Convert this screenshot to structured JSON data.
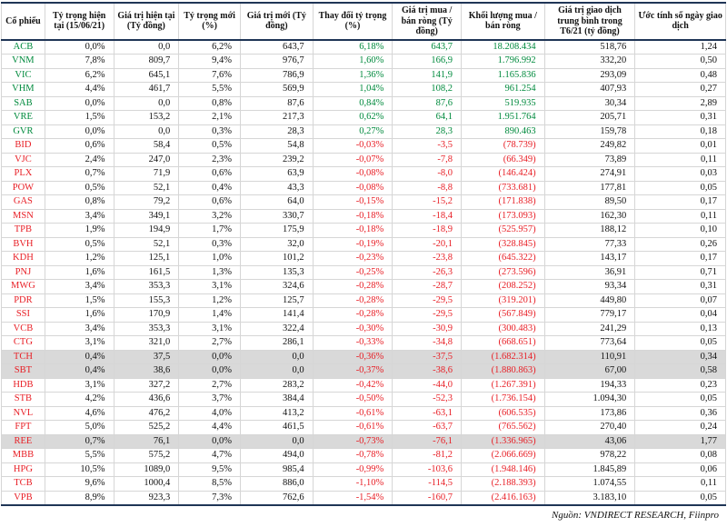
{
  "colors": {
    "positive_green": "#008a3d",
    "negative_red": "#e81e25",
    "highlight_gray": "#d9d9d9",
    "rule_dark": "#1f3556",
    "grid_line": "#d6d6d6"
  },
  "table": {
    "columns": [
      "Cổ phiếu",
      "Tỷ trọng hiện tại (15/06/21)",
      "Giá trị hiện tại (Tỷ đồng)",
      "Tỷ trọng mới (%)",
      "Giá trị mới (Tỷ đồng)",
      "Thay đổi tỷ trọng (%)",
      "Giá trị mua / bán ròng (Tỷ đồng)",
      "Khối lượng mua / bán ròng",
      "Giá trị giao dịch trung bình trong T6/21 (tỷ đồng)",
      "Ước tính số ngày giao dịch"
    ],
    "rows": [
      {
        "ticker": "ACB",
        "trend": "up",
        "highlight": false,
        "cells": [
          "0,0%",
          "0,0",
          "6,2%",
          "643,7",
          "6,18%",
          "643,7",
          "18.208.434",
          "518,76",
          "1,24"
        ]
      },
      {
        "ticker": "VNM",
        "trend": "up",
        "highlight": false,
        "cells": [
          "7,8%",
          "809,7",
          "9,4%",
          "976,7",
          "1,60%",
          "166,9",
          "1.796.992",
          "332,20",
          "0,50"
        ]
      },
      {
        "ticker": "VIC",
        "trend": "up",
        "highlight": false,
        "cells": [
          "6,2%",
          "645,1",
          "7,6%",
          "786,9",
          "1,36%",
          "141,9",
          "1.165.836",
          "293,09",
          "0,48"
        ]
      },
      {
        "ticker": "VHM",
        "trend": "up",
        "highlight": false,
        "cells": [
          "4,4%",
          "461,7",
          "5,5%",
          "569,9",
          "1,04%",
          "108,2",
          "961.254",
          "407,93",
          "0,27"
        ]
      },
      {
        "ticker": "SAB",
        "trend": "up",
        "highlight": false,
        "cells": [
          "0,0%",
          "0,0",
          "0,8%",
          "87,6",
          "0,84%",
          "87,6",
          "519.935",
          "30,34",
          "2,89"
        ]
      },
      {
        "ticker": "VRE",
        "trend": "up",
        "highlight": false,
        "cells": [
          "1,5%",
          "153,2",
          "2,1%",
          "217,3",
          "0,62%",
          "64,1",
          "1.951.764",
          "205,71",
          "0,31"
        ]
      },
      {
        "ticker": "GVR",
        "trend": "up",
        "highlight": false,
        "cells": [
          "0,0%",
          "0,0",
          "0,3%",
          "28,3",
          "0,27%",
          "28,3",
          "890.463",
          "159,78",
          "0,18"
        ]
      },
      {
        "ticker": "BID",
        "trend": "down",
        "highlight": false,
        "cells": [
          "0,6%",
          "58,4",
          "0,5%",
          "54,8",
          "-0,03%",
          "-3,5",
          "(78.739)",
          "249,82",
          "0,01"
        ]
      },
      {
        "ticker": "VJC",
        "trend": "down",
        "highlight": false,
        "cells": [
          "2,4%",
          "247,0",
          "2,3%",
          "239,2",
          "-0,07%",
          "-7,8",
          "(66.349)",
          "73,89",
          "0,11"
        ]
      },
      {
        "ticker": "PLX",
        "trend": "down",
        "highlight": false,
        "cells": [
          "0,7%",
          "71,9",
          "0,6%",
          "63,9",
          "-0,08%",
          "-8,0",
          "(146.424)",
          "274,91",
          "0,03"
        ]
      },
      {
        "ticker": "POW",
        "trend": "down",
        "highlight": false,
        "cells": [
          "0,5%",
          "52,1",
          "0,4%",
          "43,3",
          "-0,08%",
          "-8,8",
          "(733.681)",
          "177,81",
          "0,05"
        ]
      },
      {
        "ticker": "GAS",
        "trend": "down",
        "highlight": false,
        "cells": [
          "0,8%",
          "79,2",
          "0,6%",
          "64,0",
          "-0,15%",
          "-15,2",
          "(171.838)",
          "89,50",
          "0,17"
        ]
      },
      {
        "ticker": "MSN",
        "trend": "down",
        "highlight": false,
        "cells": [
          "3,4%",
          "349,1",
          "3,2%",
          "330,7",
          "-0,18%",
          "-18,4",
          "(173.093)",
          "162,30",
          "0,11"
        ]
      },
      {
        "ticker": "TPB",
        "trend": "down",
        "highlight": false,
        "cells": [
          "1,9%",
          "194,9",
          "1,7%",
          "175,9",
          "-0,18%",
          "-18,9",
          "(525.957)",
          "188,12",
          "0,10"
        ]
      },
      {
        "ticker": "BVH",
        "trend": "down",
        "highlight": false,
        "cells": [
          "0,5%",
          "52,1",
          "0,3%",
          "32,0",
          "-0,19%",
          "-20,1",
          "(328.845)",
          "77,33",
          "0,26"
        ]
      },
      {
        "ticker": "KDH",
        "trend": "down",
        "highlight": false,
        "cells": [
          "1,2%",
          "125,1",
          "1,0%",
          "101,2",
          "-0,23%",
          "-23,8",
          "(645.322)",
          "143,17",
          "0,17"
        ]
      },
      {
        "ticker": "PNJ",
        "trend": "down",
        "highlight": false,
        "cells": [
          "1,6%",
          "161,5",
          "1,3%",
          "135,3",
          "-0,25%",
          "-26,3",
          "(273.596)",
          "36,91",
          "0,71"
        ]
      },
      {
        "ticker": "MWG",
        "trend": "down",
        "highlight": false,
        "cells": [
          "3,4%",
          "353,3",
          "3,1%",
          "324,6",
          "-0,28%",
          "-28,7",
          "(208.252)",
          "93,34",
          "0,31"
        ]
      },
      {
        "ticker": "PDR",
        "trend": "down",
        "highlight": false,
        "cells": [
          "1,5%",
          "155,3",
          "1,2%",
          "125,7",
          "-0,28%",
          "-29,5",
          "(319.201)",
          "449,80",
          "0,07"
        ]
      },
      {
        "ticker": "SSI",
        "trend": "down",
        "highlight": false,
        "cells": [
          "1,6%",
          "170,9",
          "1,4%",
          "141,4",
          "-0,28%",
          "-29,5",
          "(567.849)",
          "779,17",
          "0,04"
        ]
      },
      {
        "ticker": "VCB",
        "trend": "down",
        "highlight": false,
        "cells": [
          "3,4%",
          "353,3",
          "3,1%",
          "322,4",
          "-0,30%",
          "-30,9",
          "(300.483)",
          "241,29",
          "0,13"
        ]
      },
      {
        "ticker": "CTG",
        "trend": "down",
        "highlight": false,
        "cells": [
          "3,1%",
          "321,0",
          "2,7%",
          "286,1",
          "-0,33%",
          "-34,8",
          "(668.651)",
          "773,64",
          "0,05"
        ]
      },
      {
        "ticker": "TCH",
        "trend": "down",
        "highlight": true,
        "cells": [
          "0,4%",
          "37,5",
          "0,0%",
          "0,0",
          "-0,36%",
          "-37,5",
          "(1.682.314)",
          "110,91",
          "0,34"
        ]
      },
      {
        "ticker": "SBT",
        "trend": "down",
        "highlight": true,
        "cells": [
          "0,4%",
          "38,6",
          "0,0%",
          "0,0",
          "-0,37%",
          "-38,6",
          "(1.880.863)",
          "67,00",
          "0,58"
        ]
      },
      {
        "ticker": "HDB",
        "trend": "down",
        "highlight": false,
        "cells": [
          "3,1%",
          "327,2",
          "2,7%",
          "283,2",
          "-0,42%",
          "-44,0",
          "(1.267.391)",
          "194,33",
          "0,23"
        ]
      },
      {
        "ticker": "STB",
        "trend": "down",
        "highlight": false,
        "cells": [
          "4,2%",
          "436,6",
          "3,7%",
          "384,4",
          "-0,50%",
          "-52,3",
          "(1.736.154)",
          "1.094,30",
          "0,05"
        ]
      },
      {
        "ticker": "NVL",
        "trend": "down",
        "highlight": false,
        "cells": [
          "4,6%",
          "476,2",
          "4,0%",
          "413,2",
          "-0,61%",
          "-63,1",
          "(606.535)",
          "173,86",
          "0,36"
        ]
      },
      {
        "ticker": "FPT",
        "trend": "down",
        "highlight": false,
        "cells": [
          "5,0%",
          "525,2",
          "4,4%",
          "461,5",
          "-0,61%",
          "-63,7",
          "(765.562)",
          "270,40",
          "0,24"
        ]
      },
      {
        "ticker": "REE",
        "trend": "down",
        "highlight": true,
        "cells": [
          "0,7%",
          "76,1",
          "0,0%",
          "0,0",
          "-0,73%",
          "-76,1",
          "(1.336.965)",
          "43,06",
          "1,77"
        ]
      },
      {
        "ticker": "MBB",
        "trend": "down",
        "highlight": false,
        "cells": [
          "5,5%",
          "575,2",
          "4,7%",
          "494,0",
          "-0,78%",
          "-81,2",
          "(2.066.669)",
          "978,22",
          "0,08"
        ]
      },
      {
        "ticker": "HPG",
        "trend": "down",
        "highlight": false,
        "cells": [
          "10,5%",
          "1089,0",
          "9,5%",
          "985,4",
          "-0,99%",
          "-103,6",
          "(1.948.146)",
          "1.845,89",
          "0,06"
        ]
      },
      {
        "ticker": "TCB",
        "trend": "down",
        "highlight": false,
        "cells": [
          "9,6%",
          "1000,4",
          "8,5%",
          "886,0",
          "-1,10%",
          "-114,5",
          "(2.188.393)",
          "1.074,55",
          "0,11"
        ]
      },
      {
        "ticker": "VPB",
        "trend": "down",
        "highlight": false,
        "cells": [
          "8,9%",
          "923,3",
          "7,3%",
          "762,6",
          "-1,54%",
          "-160,7",
          "(2.416.163)",
          "3.183,10",
          "0,05"
        ]
      }
    ]
  },
  "footer": {
    "source": "Nguồn: VNDIRECT RESEARCH, Fiinpro"
  }
}
